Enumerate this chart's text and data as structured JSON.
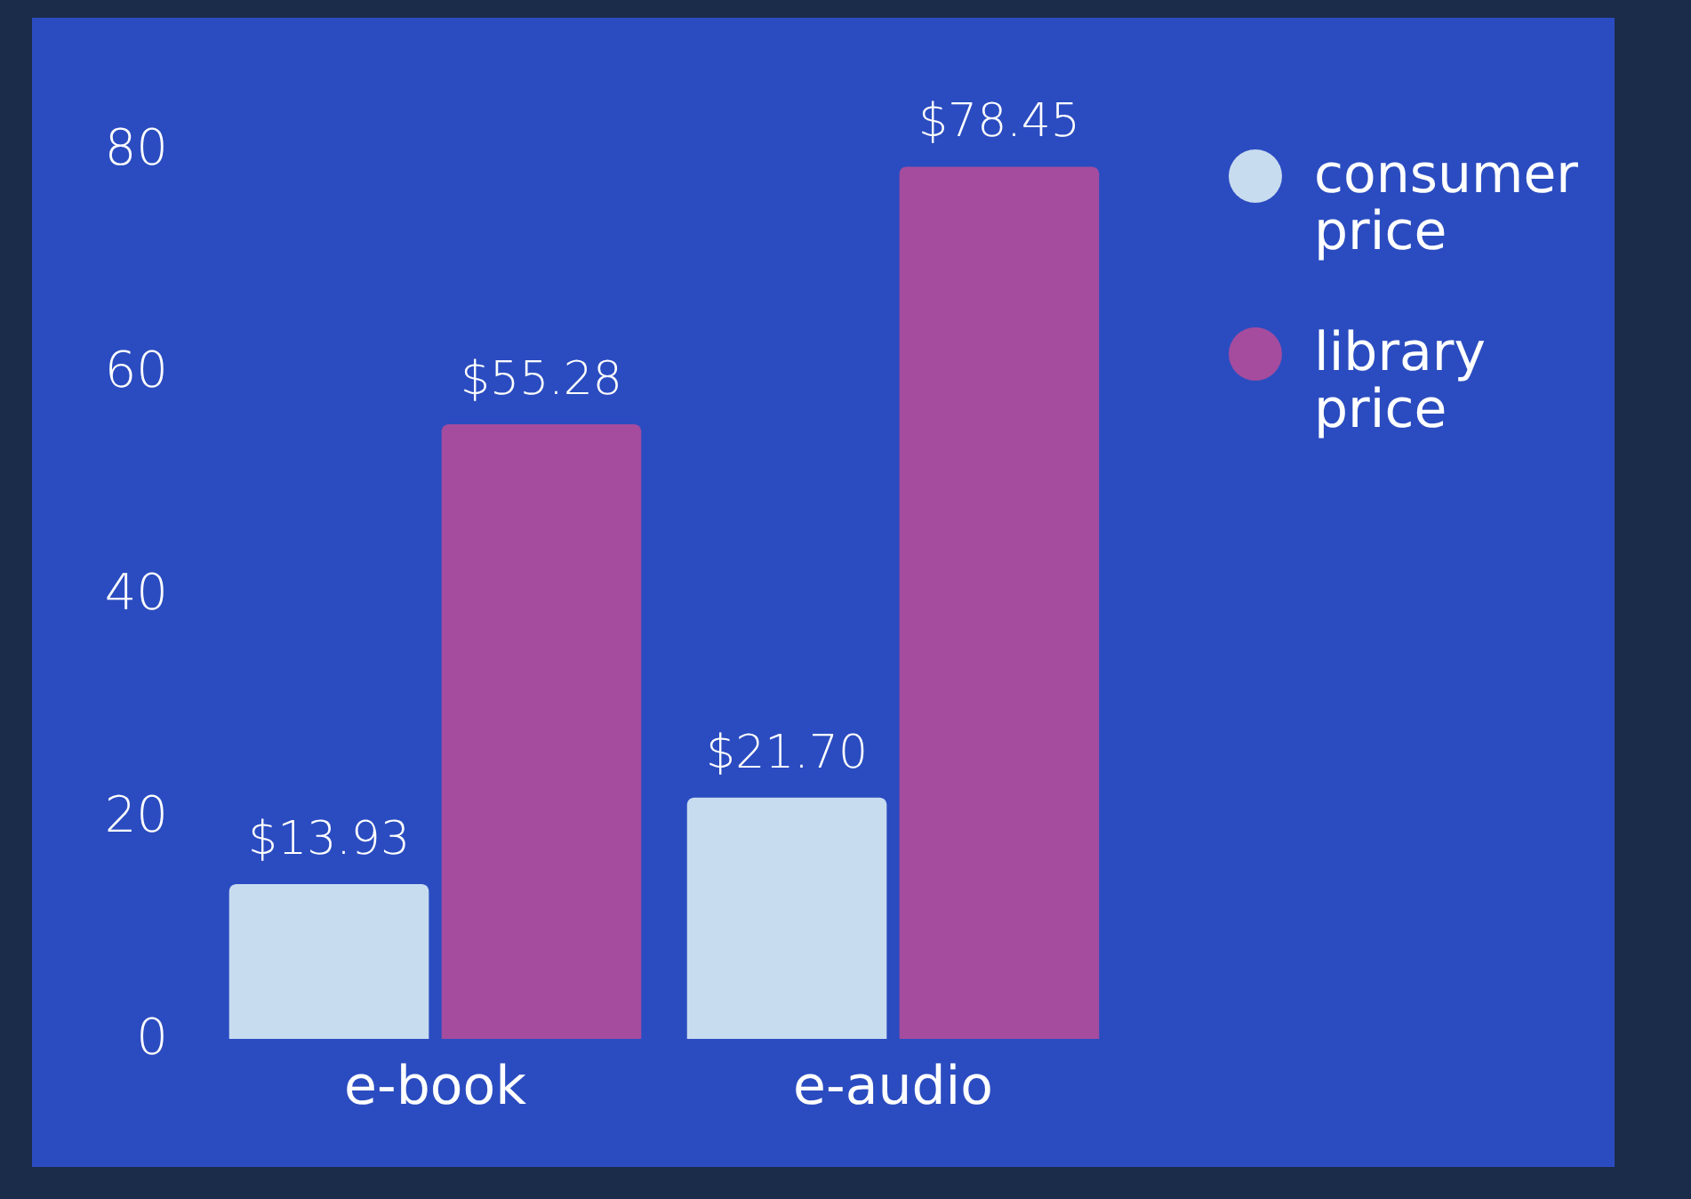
{
  "chart_data": {
    "type": "bar",
    "categories": [
      "e-book",
      "e-audio"
    ],
    "series": [
      {
        "name": "consumer price",
        "color": "#c8dcf0",
        "values": [
          13.93,
          21.7
        ],
        "value_labels": [
          "$13.93",
          "$21.70"
        ]
      },
      {
        "name": "library price",
        "color": "#a54c9e",
        "values": [
          55.28,
          78.45
        ],
        "value_labels": [
          "$55.28",
          "$78.45"
        ]
      }
    ],
    "ylim": [
      0,
      80
    ],
    "yticks": [
      0,
      20,
      40,
      60,
      80
    ],
    "legend": "right"
  }
}
